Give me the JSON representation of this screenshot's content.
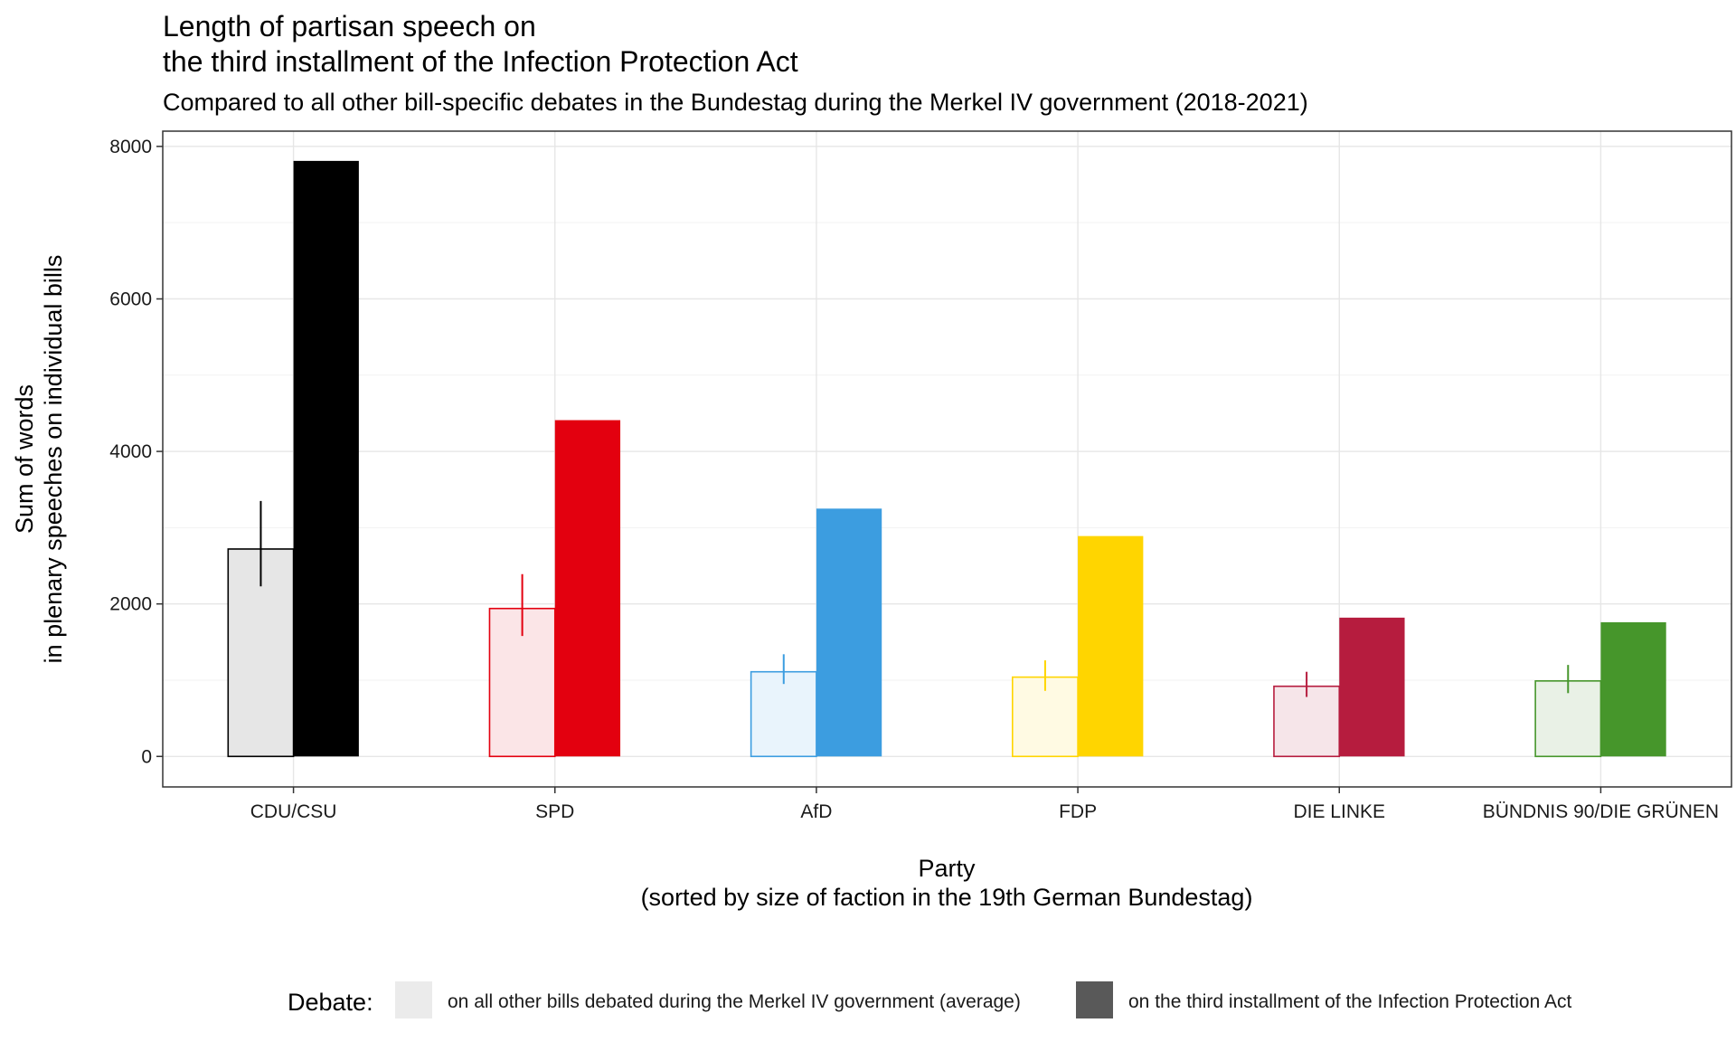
{
  "chart_data": {
    "type": "bar",
    "title_lines": [
      "Length of partisan speech on",
      "the third installment of the Infection Protection Act"
    ],
    "subtitle": "Compared to all other bill-specific debates in the Bundestag during the Merkel IV government (2018-2021)",
    "xlabel_lines": [
      "Party",
      "(sorted by size of faction in the 19th German Bundestag)"
    ],
    "ylabel_lines": [
      "Sum of words",
      "in plenary speeches on individual bills"
    ],
    "categories": [
      "CDU/CSU",
      "SPD",
      "AfD",
      "FDP",
      "DIE LINKE",
      "BÜNDNIS 90/DIE GRÜNEN"
    ],
    "party_colors": [
      "#000000",
      "#e3000f",
      "#3c9de0",
      "#ffd500",
      "#b61c3e",
      "#46962b"
    ],
    "party_light_colors": [
      "#e6e6e6",
      "#fbe5e7",
      "#e9f4fc",
      "#fffae3",
      "#f6e5e9",
      "#e9f1e6"
    ],
    "ylim": [
      -400,
      8200
    ],
    "yticks": [
      0,
      2000,
      4000,
      6000,
      8000
    ],
    "grid": true,
    "legend_position": "bottom",
    "series": [
      {
        "name": "on all other bills debated during the Merkel IV government (average)",
        "values": [
          2720,
          1940,
          1110,
          1040,
          920,
          990
        ],
        "error_low": [
          2230,
          1580,
          950,
          860,
          780,
          830
        ],
        "error_high": [
          3350,
          2390,
          1340,
          1260,
          1110,
          1200
        ]
      },
      {
        "name": "on the third installment of the Infection Protection Act",
        "values": [
          7810,
          4410,
          3250,
          2890,
          1820,
          1760
        ]
      }
    ],
    "legend": {
      "title": "Debate:",
      "swatch_colors": [
        "#ebebeb",
        "#595959"
      ]
    }
  }
}
